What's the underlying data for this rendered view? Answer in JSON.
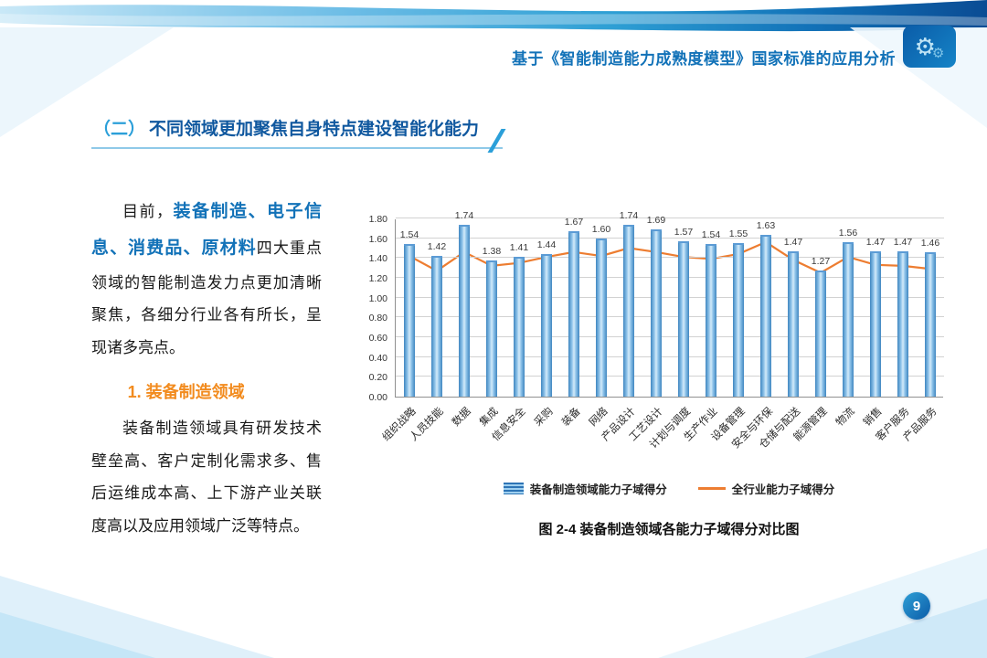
{
  "header": {
    "title": "基于《智能制造能力成熟度模型》国家标准的应用分析"
  },
  "section": {
    "prefix": "（二）",
    "title": "不同领域更加聚焦自身特点建设智能化能力"
  },
  "body": {
    "para1_prefix": "目前，",
    "para1_highlight": "装备制造、电子信息、消费品、原材料",
    "para1_rest": "四大重点领域的智能制造发力点更加清晰聚焦，各细分行业各有所长，呈现诸多亮点。",
    "subheading": "1. 装备制造领域",
    "para2": "装备制造领域具有研发技术壁垒高、客户定制化需求多、售后运维成本高、上下游产业关联度高以及应用领域广泛等特点。"
  },
  "chart": {
    "caption": "图 2-4 装备制造领域各能力子域得分对比图"
  },
  "chart_data": {
    "type": "bar",
    "title": "",
    "xlabel": "",
    "ylabel": "",
    "ylim": [
      0,
      1.8
    ],
    "ytick_step": 0.2,
    "grid": true,
    "legend_position": "bottom",
    "categories": [
      "组织战略",
      "人员技能",
      "数据",
      "集成",
      "信息安全",
      "采购",
      "装备",
      "网络",
      "产品设计",
      "工艺设计",
      "计划与调度",
      "生产作业",
      "设备管理",
      "安全与环保",
      "仓储与配送",
      "能源管理",
      "物流",
      "销售",
      "客户服务",
      "产品服务"
    ],
    "series": [
      {
        "name": "装备制造领域能力子域得分",
        "type": "bar",
        "color": "#9DC3E6",
        "values": [
          1.54,
          1.42,
          1.74,
          1.38,
          1.41,
          1.44,
          1.67,
          1.6,
          1.74,
          1.69,
          1.57,
          1.54,
          1.55,
          1.63,
          1.47,
          1.27,
          1.56,
          1.47,
          1.47,
          1.46
        ]
      },
      {
        "name": "全行业能力子域得分",
        "type": "line",
        "color": "#ED7D31",
        "values": [
          1.43,
          1.28,
          1.47,
          1.33,
          1.36,
          1.42,
          1.47,
          1.43,
          1.51,
          1.47,
          1.42,
          1.4,
          1.45,
          1.57,
          1.39,
          1.26,
          1.42,
          1.34,
          1.33,
          1.3
        ]
      }
    ]
  },
  "footer": {
    "page_number": "9"
  },
  "colors": {
    "accent_blue": "#1272b8",
    "accent_light_blue": "#2b9fd9",
    "accent_orange": "#f28b1e",
    "bar_fill": "#9DC3E6",
    "line_color": "#ED7D31"
  }
}
